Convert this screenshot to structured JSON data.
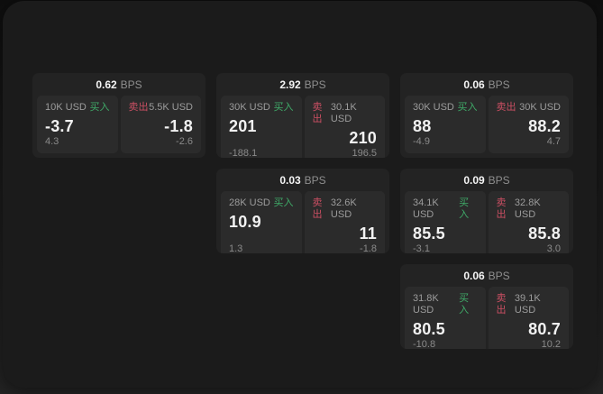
{
  "labels": {
    "bps": "BPS",
    "buy": "买入",
    "sell": "卖出"
  },
  "colors": {
    "window_bg": "#1b1b1b",
    "card_bg": "#232323",
    "panel_bg": "#2b2b2b",
    "buy_green": "#3faa68",
    "sell_red": "#cb4f63",
    "value_white": "#f2f2f2",
    "label_gray": "#9c9c9c",
    "muted_gray": "#8a8a8a"
  },
  "cards": [
    {
      "bps": "0.62",
      "buy": {
        "size": "10K USD",
        "value": "-3.7",
        "delta": "4.3"
      },
      "sell": {
        "size": "5.5K USD",
        "value": "-1.8",
        "delta": "-2.6"
      }
    },
    {
      "bps": "2.92",
      "buy": {
        "size": "30K USD",
        "value": "201",
        "delta": "-188.1"
      },
      "sell": {
        "size": "30.1K USD",
        "value": "210",
        "delta": "196.5"
      }
    },
    {
      "bps": "0.06",
      "buy": {
        "size": "30K USD",
        "value": "88",
        "delta": "-4.9"
      },
      "sell": {
        "size": "30K USD",
        "value": "88.2",
        "delta": "4.7"
      }
    },
    {
      "bps": "0.03",
      "buy": {
        "size": "28K USD",
        "value": "10.9",
        "delta": "1.3"
      },
      "sell": {
        "size": "32.6K USD",
        "value": "11",
        "delta": "-1.8"
      }
    },
    {
      "bps": "0.09",
      "buy": {
        "size": "34.1K USD",
        "value": "85.5",
        "delta": "-3.1"
      },
      "sell": {
        "size": "32.8K USD",
        "value": "85.8",
        "delta": "3.0"
      }
    },
    {
      "bps": "0.06",
      "buy": {
        "size": "31.8K USD",
        "value": "80.5",
        "delta": "-10.8"
      },
      "sell": {
        "size": "39.1K USD",
        "value": "80.7",
        "delta": "10.2"
      }
    }
  ]
}
